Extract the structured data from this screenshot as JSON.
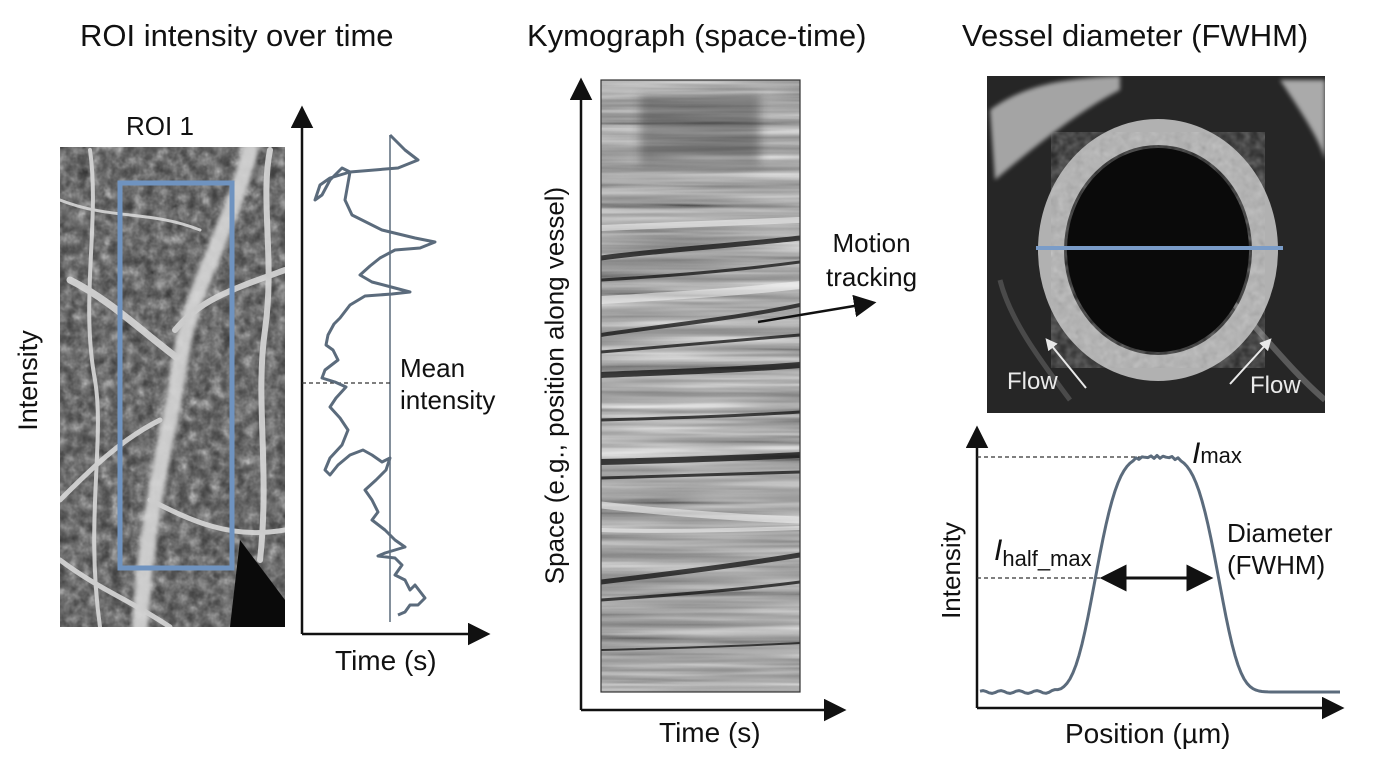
{
  "panels": {
    "roi": {
      "title": "ROI intensity over time",
      "roi_label": "ROI 1",
      "ylabel": "Intensity",
      "xlabel": "Time (s)",
      "mean_label_line1": "Mean",
      "mean_label_line2": "intensity",
      "trace_color": "#5b6b7c",
      "roi_box_color": "#6f93c0"
    },
    "kymograph": {
      "title": "Kymograph (space-time)",
      "ylabel": "Space (e.g., position along vessel)",
      "xlabel": "Time (s)",
      "annotation_line1": "Motion",
      "annotation_line2": "tracking"
    },
    "diameter": {
      "title": "Vessel diameter (FWHM)",
      "flow_left": "Flow",
      "flow_right": "Flow",
      "ylabel": "Intensity",
      "xlabel": "Position (µm)",
      "imax_italic": "I",
      "imax_sub": "max",
      "ihalf_italic": "I",
      "ihalf_sub": "half_max",
      "diameter_line1": "Diameter",
      "diameter_line2": "(FWHM)",
      "profile_color": "#5b6b7c",
      "scanline_color": "#7a9cc8"
    }
  }
}
